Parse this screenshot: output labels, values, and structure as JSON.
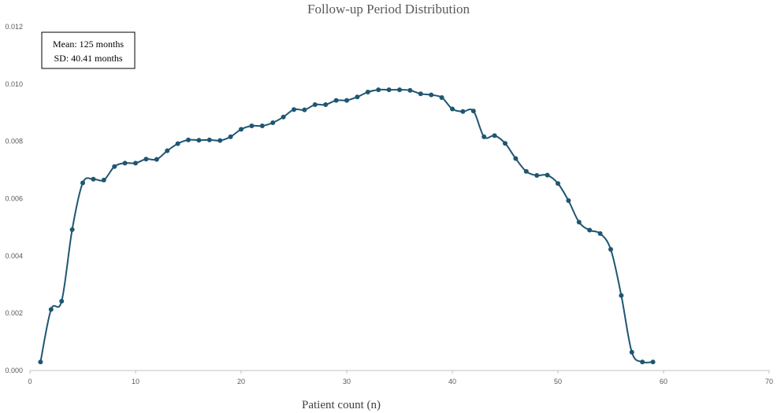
{
  "chart_data": {
    "type": "line",
    "title": "Follow-up Period Distribution",
    "xlabel": "Patient count (n)",
    "ylabel": "",
    "xlim": [
      0,
      70
    ],
    "ylim": [
      0,
      0.012
    ],
    "x_ticks": [
      "0",
      "10",
      "20",
      "30",
      "40",
      "50",
      "60",
      "70"
    ],
    "y_ticks": [
      "0.000",
      "0.002",
      "0.004",
      "0.006",
      "0.008",
      "0.010",
      "0.012"
    ],
    "grid": false,
    "smooth": true,
    "markers": true,
    "color": "#1f5672",
    "annotation": [
      "Mean: 125 months",
      "SD: 40.41 months"
    ],
    "series": [
      {
        "x": [
          1,
          2,
          3,
          4,
          5,
          6,
          7,
          8,
          9,
          10,
          11,
          12,
          13,
          14,
          15,
          16,
          17,
          18,
          19,
          20,
          21,
          22,
          23,
          24,
          25,
          26,
          27,
          28,
          29,
          30,
          31,
          32,
          33,
          34,
          35,
          36,
          37,
          38,
          39,
          40,
          41,
          42,
          43,
          44,
          45,
          46,
          47,
          48,
          49,
          50,
          51,
          52,
          53,
          54,
          55,
          56,
          57,
          58,
          59
        ],
        "y": [
          0.0003,
          0.00213,
          0.00242,
          0.00492,
          0.00655,
          0.00668,
          0.00665,
          0.00712,
          0.00724,
          0.00724,
          0.00738,
          0.00737,
          0.00767,
          0.00792,
          0.00805,
          0.00804,
          0.00805,
          0.00803,
          0.00816,
          0.00842,
          0.00854,
          0.00854,
          0.00865,
          0.00885,
          0.00911,
          0.0091,
          0.00928,
          0.00928,
          0.00943,
          0.00943,
          0.00955,
          0.00972,
          0.0098,
          0.0098,
          0.0098,
          0.00978,
          0.00966,
          0.00962,
          0.00953,
          0.00913,
          0.00904,
          0.00906,
          0.00816,
          0.0082,
          0.00793,
          0.0074,
          0.00695,
          0.00681,
          0.00682,
          0.00653,
          0.00593,
          0.00518,
          0.0049,
          0.00478,
          0.00423,
          0.00262,
          0.00064,
          0.0003,
          0.0003
        ]
      }
    ]
  }
}
